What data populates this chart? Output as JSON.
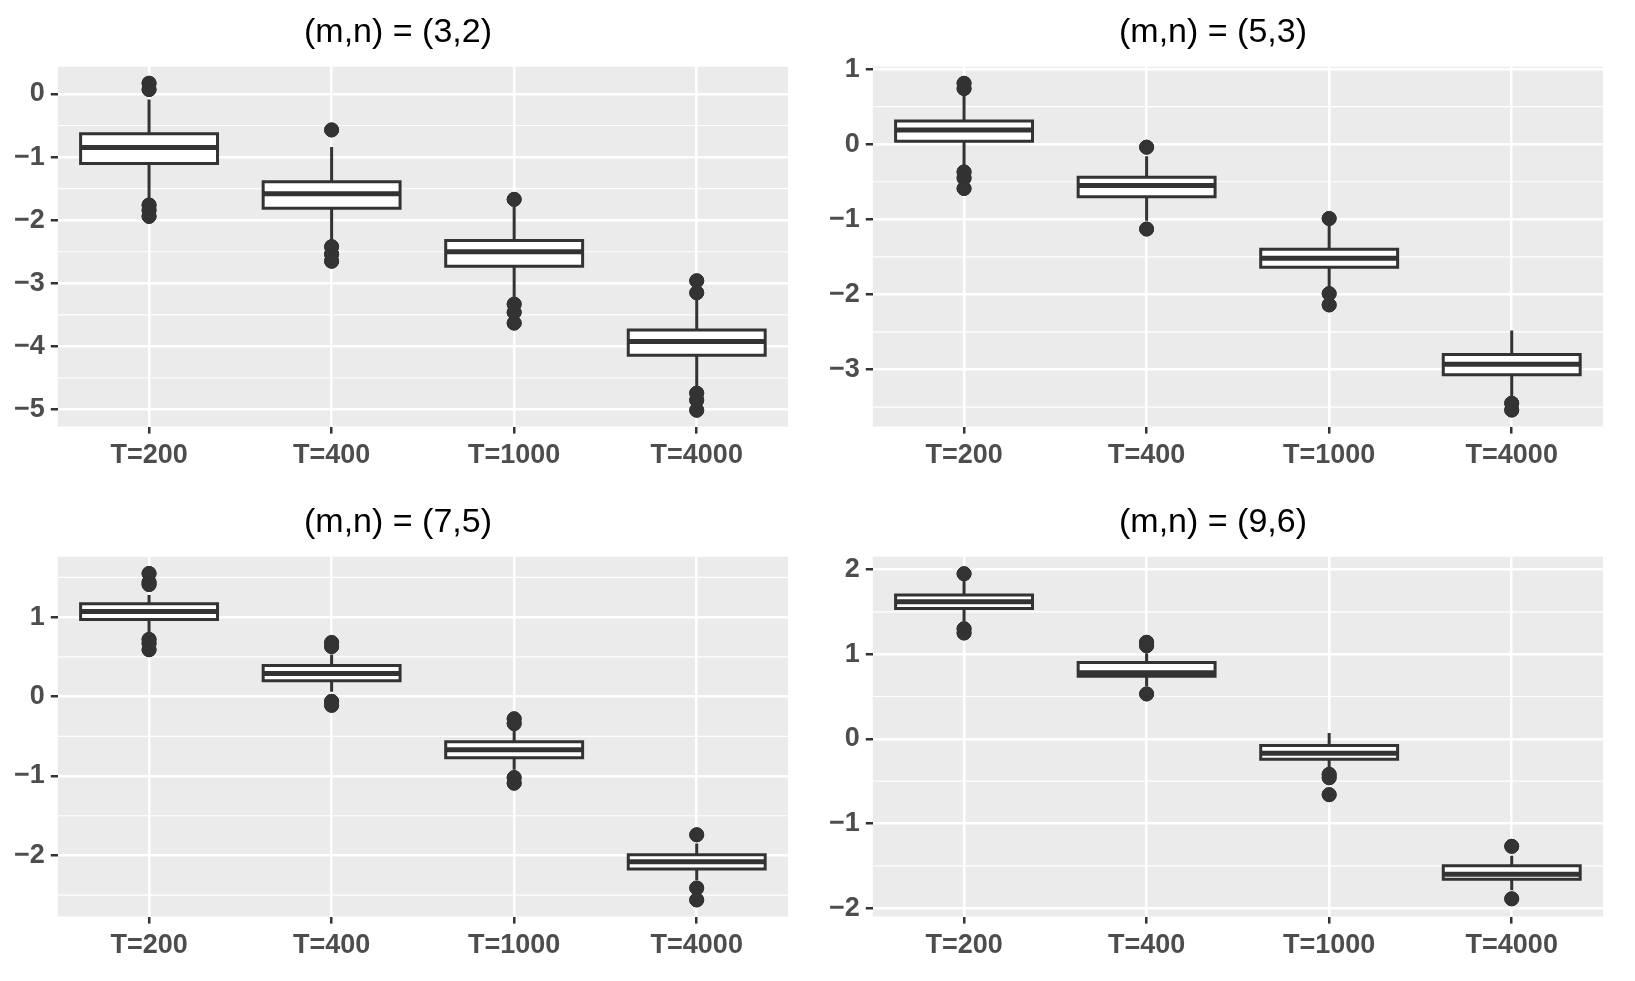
{
  "chart_data": [
    {
      "type": "box",
      "title": "(m,n) = (3,2)",
      "categories": [
        "T=200",
        "T=400",
        "T=1000",
        "T=4000"
      ],
      "ylim": [
        -5.27,
        0.43
      ],
      "yticks": [
        -5,
        -4,
        -3,
        -2,
        -1,
        0
      ],
      "grid": true,
      "boxes": [
        {
          "low": -1.7,
          "q1": -1.1,
          "median": -0.85,
          "q3": -0.63,
          "high": -0.09,
          "outliers": [
            0.17,
            0.07,
            -1.76,
            -1.84,
            -1.94
          ]
        },
        {
          "low": -2.35,
          "q1": -1.81,
          "median": -1.58,
          "q3": -1.39,
          "high": -0.84,
          "outliers": [
            -0.57,
            -2.42,
            -2.54,
            -2.65
          ]
        },
        {
          "low": -3.26,
          "q1": -2.73,
          "median": -2.5,
          "q3": -2.32,
          "high": -1.78,
          "outliers": [
            -1.67,
            -3.33,
            -3.46,
            -3.63
          ]
        },
        {
          "low": -4.65,
          "q1": -4.14,
          "median": -3.92,
          "q3": -3.74,
          "high": -3.26,
          "outliers": [
            -2.96,
            -3.15,
            -4.74,
            -4.85,
            -5.01
          ]
        }
      ]
    },
    {
      "type": "box",
      "title": "(m,n) = (5,3)",
      "categories": [
        "T=200",
        "T=400",
        "T=1000",
        "T=4000"
      ],
      "ylim": [
        -3.76,
        1.03
      ],
      "yticks": [
        -3,
        -2,
        -1,
        0,
        1
      ],
      "grid": true,
      "boxes": [
        {
          "low": -0.3,
          "q1": 0.04,
          "median": 0.19,
          "q3": 0.31,
          "high": 0.67,
          "outliers": [
            0.81,
            0.74,
            -0.37,
            -0.45,
            -0.59
          ]
        },
        {
          "low": -1.02,
          "q1": -0.7,
          "median": -0.55,
          "q3": -0.44,
          "high": -0.16,
          "outliers": [
            -0.04,
            -1.13
          ]
        },
        {
          "low": -1.92,
          "q1": -1.64,
          "median": -1.52,
          "q3": -1.4,
          "high": -1.09,
          "outliers": [
            -0.99,
            -1.99,
            -2.14
          ]
        },
        {
          "low": -3.36,
          "q1": -3.07,
          "median": -2.93,
          "q3": -2.8,
          "high": -2.48,
          "outliers": [
            -3.45,
            -3.54
          ]
        }
      ]
    },
    {
      "type": "box",
      "title": "(m,n) = (7,5)",
      "categories": [
        "T=200",
        "T=400",
        "T=1000",
        "T=4000"
      ],
      "ylim": [
        -2.77,
        1.76
      ],
      "yticks": [
        -2,
        -1,
        0,
        1
      ],
      "grid": true,
      "boxes": [
        {
          "low": 0.81,
          "q1": 0.97,
          "median": 1.07,
          "q3": 1.17,
          "high": 1.28,
          "outliers": [
            1.55,
            1.44,
            1.41,
            0.72,
            0.67,
            0.59
          ]
        },
        {
          "low": 0.06,
          "q1": 0.2,
          "median": 0.29,
          "q3": 0.39,
          "high": 0.53,
          "outliers": [
            0.68,
            0.63,
            -0.06,
            -0.11
          ]
        },
        {
          "low": -0.92,
          "q1": -0.77,
          "median": -0.67,
          "q3": -0.57,
          "high": -0.43,
          "outliers": [
            -0.28,
            -0.34,
            -1.02,
            -1.09
          ]
        },
        {
          "low": -2.31,
          "q1": -2.17,
          "median": -2.08,
          "q3": -1.99,
          "high": -1.85,
          "outliers": [
            -1.74,
            -2.41,
            -2.56
          ]
        }
      ]
    },
    {
      "type": "box",
      "title": "(m,n) = (9,6)",
      "categories": [
        "T=200",
        "T=400",
        "T=1000",
        "T=4000"
      ],
      "ylim": [
        -2.1,
        2.15
      ],
      "yticks": [
        -2,
        -1,
        0,
        1,
        2
      ],
      "grid": true,
      "boxes": [
        {
          "low": 1.39,
          "q1": 1.54,
          "median": 1.62,
          "q3": 1.7,
          "high": 1.87,
          "outliers": [
            1.95,
            1.3,
            1.25
          ]
        },
        {
          "low": 0.62,
          "q1": 0.74,
          "median": 0.78,
          "q3": 0.9,
          "high": 1.01,
          "outliers": [
            1.14,
            1.1,
            0.53
          ]
        },
        {
          "low": -0.34,
          "q1": -0.24,
          "median": -0.17,
          "q3": -0.08,
          "high": 0.07,
          "outliers": [
            -0.42,
            -0.46,
            -0.66
          ]
        },
        {
          "low": -1.79,
          "q1": -1.66,
          "median": -1.6,
          "q3": -1.5,
          "high": -1.38,
          "outliers": [
            -1.27,
            -1.89
          ]
        }
      ]
    }
  ]
}
